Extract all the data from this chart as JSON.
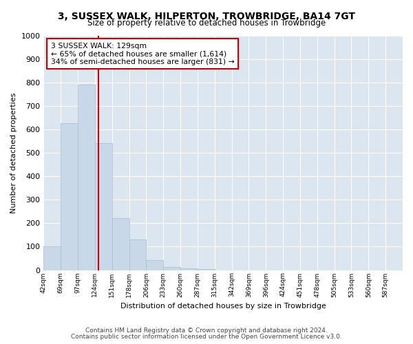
{
  "title_line1": "3, SUSSEX WALK, HILPERTON, TROWBRIDGE, BA14 7GT",
  "title_line2": "Size of property relative to detached houses in Trowbridge",
  "xlabel": "Distribution of detached houses by size in Trowbridge",
  "ylabel": "Number of detached properties",
  "bar_color": "#c8d8e8",
  "bar_edgecolor": "#a8bece",
  "marker_line_color": "#cc0000",
  "marker_value_index": 3,
  "annotation_line1": "3 SUSSEX WALK: 129sqm",
  "annotation_line2": "← 65% of detached houses are smaller (1,614)",
  "annotation_line3": "34% of semi-detached houses are larger (831) →",
  "categories": [
    "42sqm",
    "69sqm",
    "97sqm",
    "124sqm",
    "151sqm",
    "178sqm",
    "206sqm",
    "233sqm",
    "260sqm",
    "287sqm",
    "315sqm",
    "342sqm",
    "369sqm",
    "396sqm",
    "424sqm",
    "451sqm",
    "478sqm",
    "505sqm",
    "533sqm",
    "560sqm",
    "587sqm"
  ],
  "values": [
    100,
    625,
    790,
    540,
    220,
    130,
    43,
    13,
    8,
    5,
    0,
    0,
    0,
    0,
    0,
    0,
    0,
    0,
    0,
    0,
    0
  ],
  "ylim": [
    0,
    1000
  ],
  "yticks": [
    0,
    100,
    200,
    300,
    400,
    500,
    600,
    700,
    800,
    900,
    1000
  ],
  "fig_background": "#ffffff",
  "plot_background": "#dce6f0",
  "grid_color": "#ffffff",
  "footer_line1": "Contains HM Land Registry data © Crown copyright and database right 2024.",
  "footer_line2": "Contains public sector information licensed under the Open Government Licence v3.0."
}
